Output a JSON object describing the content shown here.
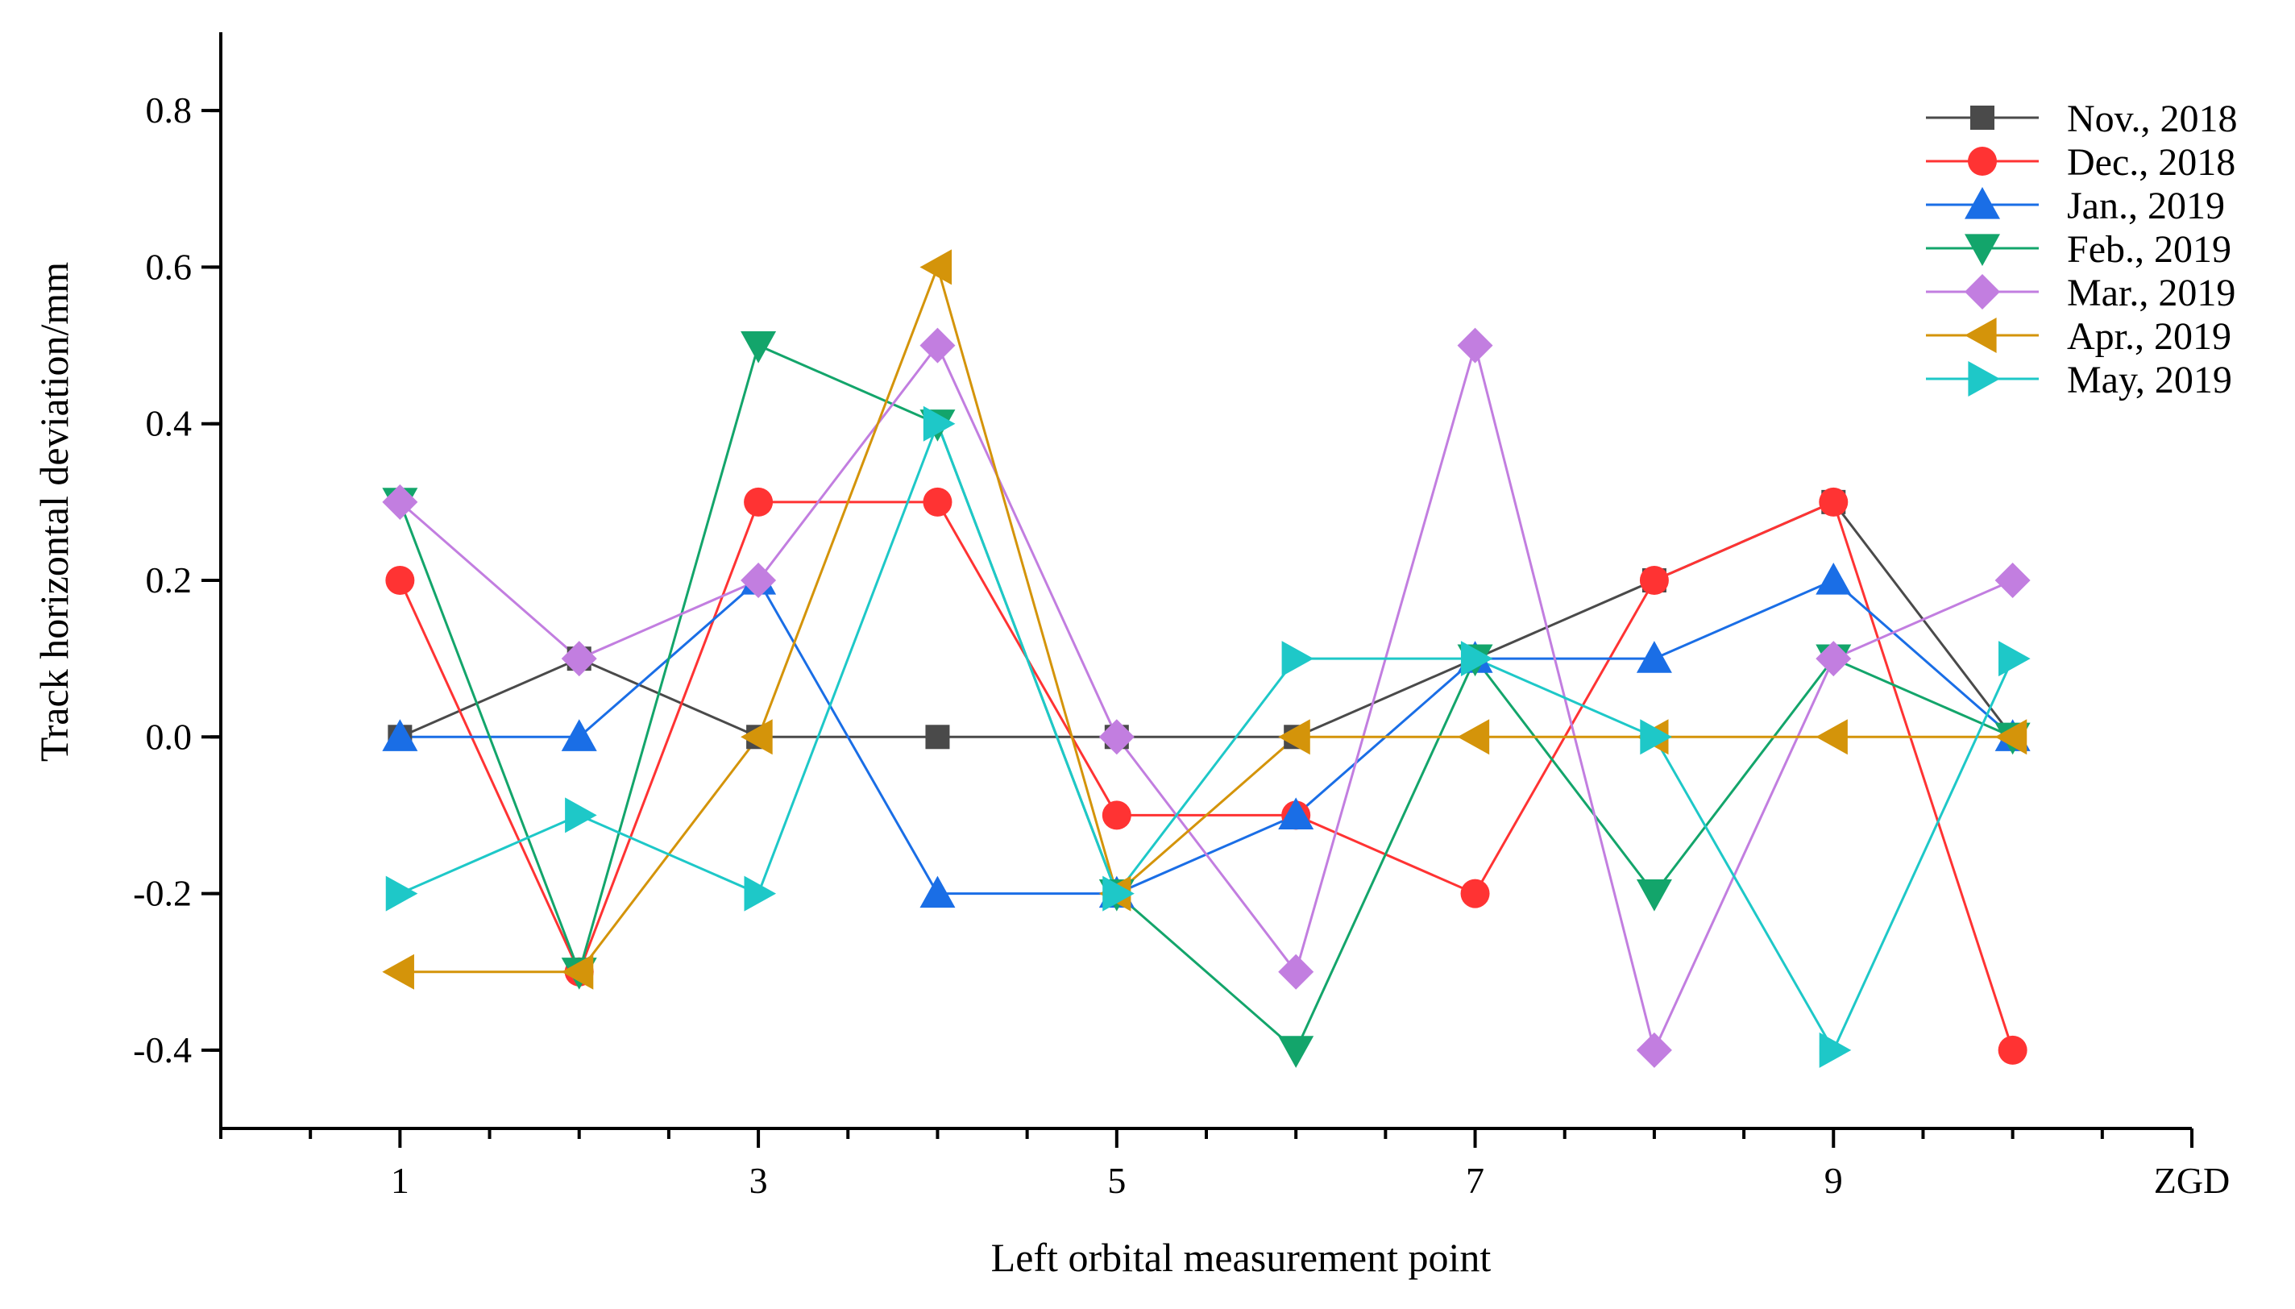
{
  "chart_data": {
    "type": "line",
    "title": "",
    "xlabel": "Left orbital measurement point",
    "ylabel": "Track horizontal deviation/mm",
    "x": [
      1,
      2,
      3,
      4,
      5,
      6,
      7,
      8,
      9,
      10
    ],
    "xlim": [
      0,
      11
    ],
    "ylim": [
      -0.5,
      0.9
    ],
    "x_ticks": [
      1,
      3,
      5,
      7,
      9
    ],
    "x_tick_labels": [
      "1",
      "3",
      "5",
      "7",
      "9"
    ],
    "x_end_label": "ZGD",
    "y_ticks": [
      -0.4,
      -0.2,
      0.0,
      0.2,
      0.4,
      0.6,
      0.8
    ],
    "y_tick_labels": [
      "-0.4",
      "-0.2",
      "0.0",
      "0.2",
      "0.4",
      "0.6",
      "0.8"
    ],
    "grid": false,
    "legend_position": "top-right",
    "series": [
      {
        "name": "Nov., 2018",
        "color": "#4a4a4a",
        "marker": "square",
        "values": [
          0,
          0.1,
          0,
          0,
          0,
          0,
          0.1,
          0.2,
          0.3,
          0
        ]
      },
      {
        "name": "Dec., 2018",
        "color": "#ff3333",
        "marker": "circle",
        "values": [
          0.2,
          -0.3,
          0.3,
          0.3,
          -0.1,
          -0.1,
          -0.2,
          0.2,
          0.3,
          -0.4
        ]
      },
      {
        "name": "Jan., 2019",
        "color": "#1a6ee6",
        "marker": "triangle-up",
        "values": [
          0,
          0,
          0.2,
          -0.2,
          -0.2,
          -0.1,
          0.1,
          0.1,
          0.2,
          0
        ]
      },
      {
        "name": "Feb., 2019",
        "color": "#13a56b",
        "marker": "triangle-down",
        "values": [
          0.3,
          -0.3,
          0.5,
          0.4,
          -0.2,
          -0.4,
          0.1,
          -0.2,
          0.1,
          0
        ]
      },
      {
        "name": "Mar., 2019",
        "color": "#c27ee0",
        "marker": "diamond",
        "values": [
          0.3,
          0.1,
          0.2,
          0.5,
          0,
          -0.3,
          0.5,
          -0.4,
          0.1,
          0.2
        ]
      },
      {
        "name": "Apr., 2019",
        "color": "#d4940a",
        "marker": "triangle-left",
        "values": [
          -0.3,
          -0.3,
          0,
          0.6,
          -0.2,
          0,
          0,
          0,
          0,
          0
        ]
      },
      {
        "name": "May, 2019",
        "color": "#1ec8c8",
        "marker": "triangle-right",
        "values": [
          -0.2,
          -0.1,
          -0.2,
          0.4,
          -0.2,
          0.1,
          0.1,
          0,
          -0.4,
          0.1
        ]
      }
    ]
  }
}
